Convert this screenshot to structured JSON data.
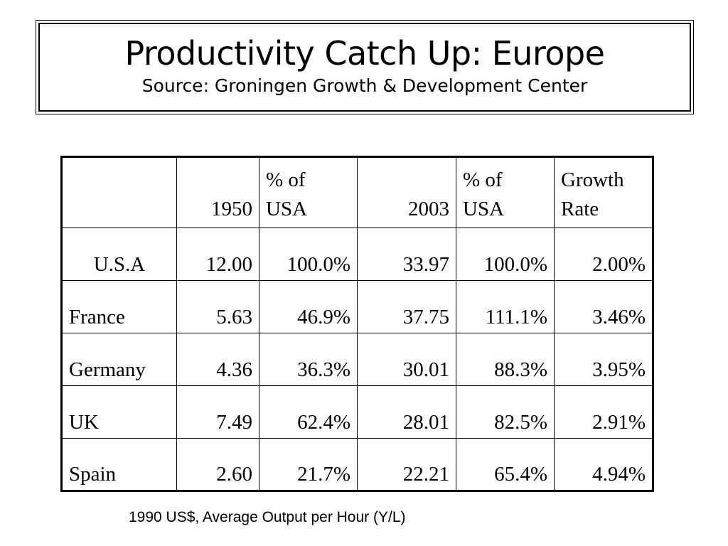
{
  "title": "Productivity Catch Up: Europe",
  "subtitle": "Source: Groningen Growth & Development Center",
  "table": {
    "headers": [
      "",
      "1950",
      "% of USA",
      "2003",
      "% of USA",
      "Growth Rate"
    ],
    "header_lines": {
      "pct1": [
        "% of",
        "USA"
      ],
      "pct2": [
        "% of",
        "USA"
      ],
      "growth": [
        "Growth",
        "Rate"
      ]
    },
    "rows": [
      [
        "U.S.A",
        "12.00",
        "100.0%",
        "33.97",
        "100.0%",
        "2.00%"
      ],
      [
        "France",
        "5.63",
        "46.9%",
        "37.75",
        "111.1%",
        "3.46%"
      ],
      [
        "Germany",
        "4.36",
        "36.3%",
        "30.01",
        "88.3%",
        "3.95%"
      ],
      [
        "UK",
        "7.49",
        "62.4%",
        "28.01",
        "82.5%",
        "2.91%"
      ],
      [
        "Spain",
        "2.60",
        "21.7%",
        "22.21",
        "65.4%",
        "4.94%"
      ]
    ]
  },
  "footnote": "1990 US$, Average Output per Hour (Y/L)"
}
